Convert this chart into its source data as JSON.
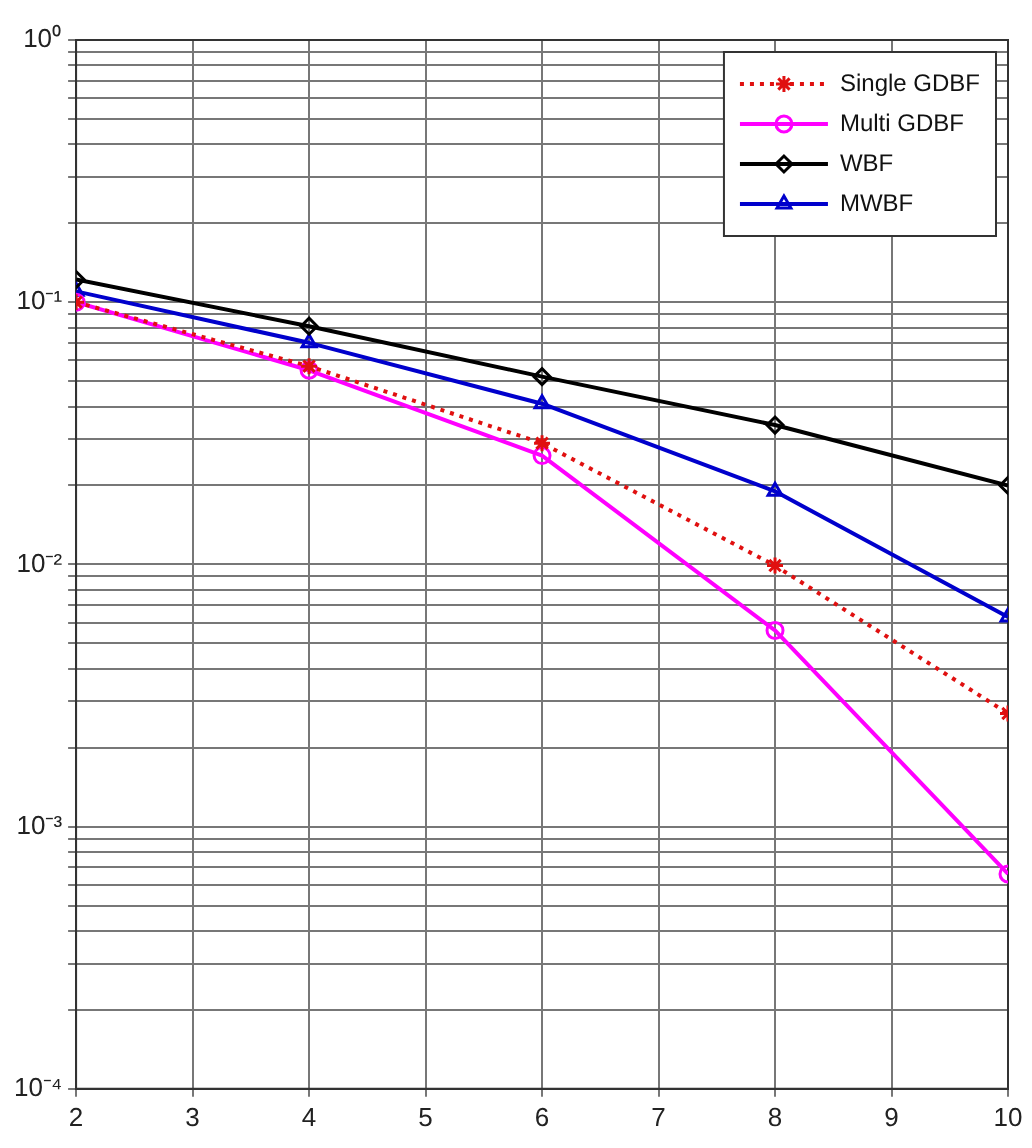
{
  "chart_data": {
    "type": "line",
    "x": [
      2,
      4,
      6,
      8,
      10
    ],
    "xlim": [
      2,
      10
    ],
    "xticks": [
      2,
      3,
      4,
      5,
      6,
      7,
      8,
      9,
      10
    ],
    "log": "y",
    "ylim": [
      0.0001,
      1
    ],
    "yticks": [
      {
        "value": 0.0001,
        "label": "10⁻⁴"
      },
      {
        "value": 0.0002,
        "label": null
      },
      {
        "value": 0.0003,
        "label": null
      },
      {
        "value": 0.0004,
        "label": null
      },
      {
        "value": 0.0005,
        "label": null
      },
      {
        "value": 0.0006,
        "label": null
      },
      {
        "value": 0.0007,
        "label": null
      },
      {
        "value": 0.0008,
        "label": null
      },
      {
        "value": 0.0009,
        "label": null
      },
      {
        "value": 0.001,
        "label": "10⁻³"
      },
      {
        "value": 0.002,
        "label": null
      },
      {
        "value": 0.003,
        "label": null
      },
      {
        "value": 0.004,
        "label": null
      },
      {
        "value": 0.005,
        "label": null
      },
      {
        "value": 0.006,
        "label": null
      },
      {
        "value": 0.007,
        "label": null
      },
      {
        "value": 0.008,
        "label": null
      },
      {
        "value": 0.009,
        "label": null
      },
      {
        "value": 0.01,
        "label": "10⁻²"
      },
      {
        "value": 0.02,
        "label": null
      },
      {
        "value": 0.03,
        "label": null
      },
      {
        "value": 0.04,
        "label": null
      },
      {
        "value": 0.05,
        "label": null
      },
      {
        "value": 0.06,
        "label": null
      },
      {
        "value": 0.07,
        "label": null
      },
      {
        "value": 0.08,
        "label": null
      },
      {
        "value": 0.09,
        "label": null
      },
      {
        "value": 0.1,
        "label": "10⁻¹"
      },
      {
        "value": 0.2,
        "label": null
      },
      {
        "value": 0.3,
        "label": null
      },
      {
        "value": 0.4,
        "label": null
      },
      {
        "value": 0.5,
        "label": null
      },
      {
        "value": 0.6,
        "label": null
      },
      {
        "value": 0.7,
        "label": null
      },
      {
        "value": 0.8,
        "label": null
      },
      {
        "value": 0.9,
        "label": null
      },
      {
        "value": 1,
        "label": "10⁰"
      }
    ],
    "grid": true,
    "legend": "top right",
    "series": [
      {
        "name": "Single GDBF",
        "color": "#e01010",
        "marker": "cross",
        "line_style": "dotted",
        "values": [
          0.1,
          0.057,
          0.029,
          0.0099,
          0.0027
        ]
      },
      {
        "name": "Multi GDBF",
        "color": "#ff00ff",
        "marker": "circle",
        "line_style": "solid",
        "values": [
          0.1,
          0.055,
          0.026,
          0.0056,
          0.00066
        ]
      },
      {
        "name": "WBF",
        "color": "#000000",
        "marker": "diamond",
        "line_style": "solid",
        "values": [
          0.122,
          0.081,
          0.052,
          0.034,
          0.02
        ]
      },
      {
        "name": "MWBF",
        "color": "#0000cc",
        "marker": "triangle",
        "line_style": "solid",
        "values": [
          0.11,
          0.07,
          0.041,
          0.019,
          0.0063
        ]
      }
    ]
  }
}
